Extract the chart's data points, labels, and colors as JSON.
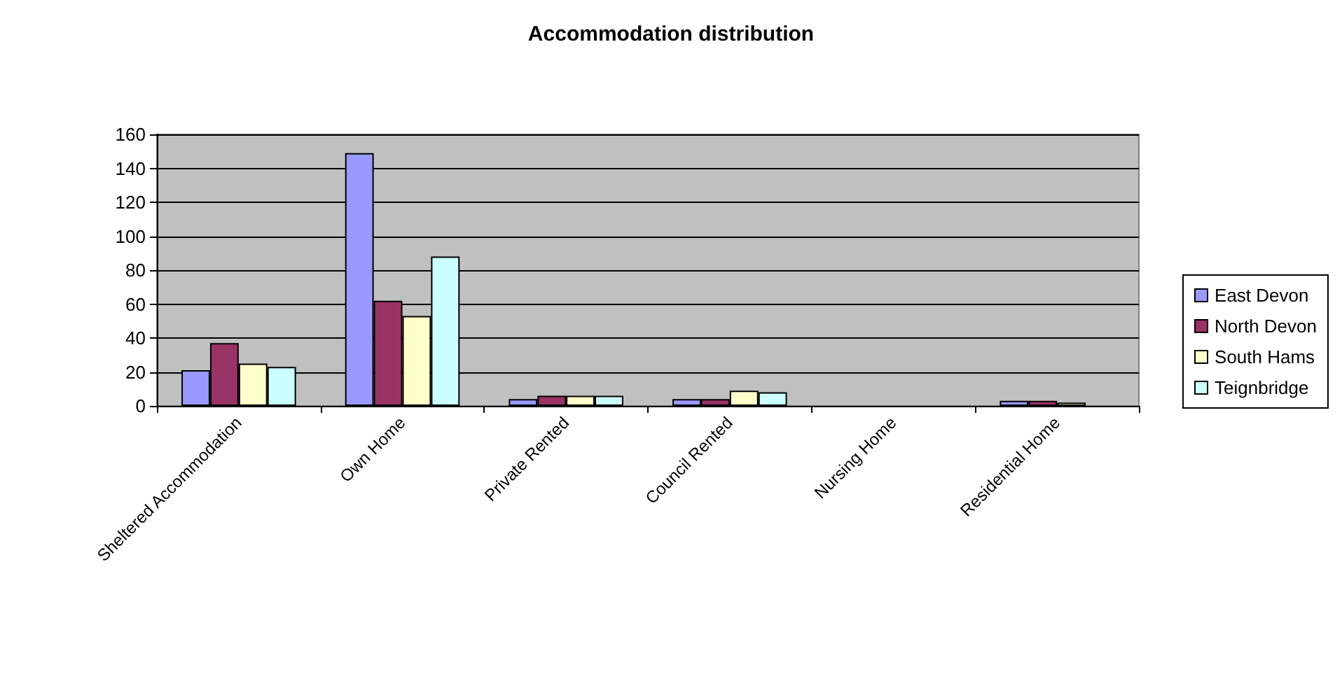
{
  "chart_data": {
    "type": "bar",
    "title": "Accommodation distribution",
    "categories": [
      "Sheltered Accommodation",
      "Own Home",
      "Private Rented",
      "Council Rented",
      "Nursing Home",
      "Residential Home"
    ],
    "series": [
      {
        "name": "East Devon",
        "color": "#9999ff",
        "values": [
          21,
          149,
          4,
          4,
          0,
          3
        ]
      },
      {
        "name": "North Devon",
        "color": "#993366",
        "values": [
          37,
          62,
          6,
          4,
          0,
          3
        ]
      },
      {
        "name": "South Hams",
        "color": "#ffffcc",
        "values": [
          25,
          53,
          6,
          9,
          0,
          2
        ]
      },
      {
        "name": "Teignbridge",
        "color": "#ccffff",
        "values": [
          23,
          88,
          6,
          8,
          0,
          0
        ]
      }
    ],
    "ylim": [
      0,
      160
    ],
    "yticks": [
      0,
      20,
      40,
      60,
      80,
      100,
      120,
      140,
      160
    ],
    "grid": "y",
    "legend": "right"
  }
}
